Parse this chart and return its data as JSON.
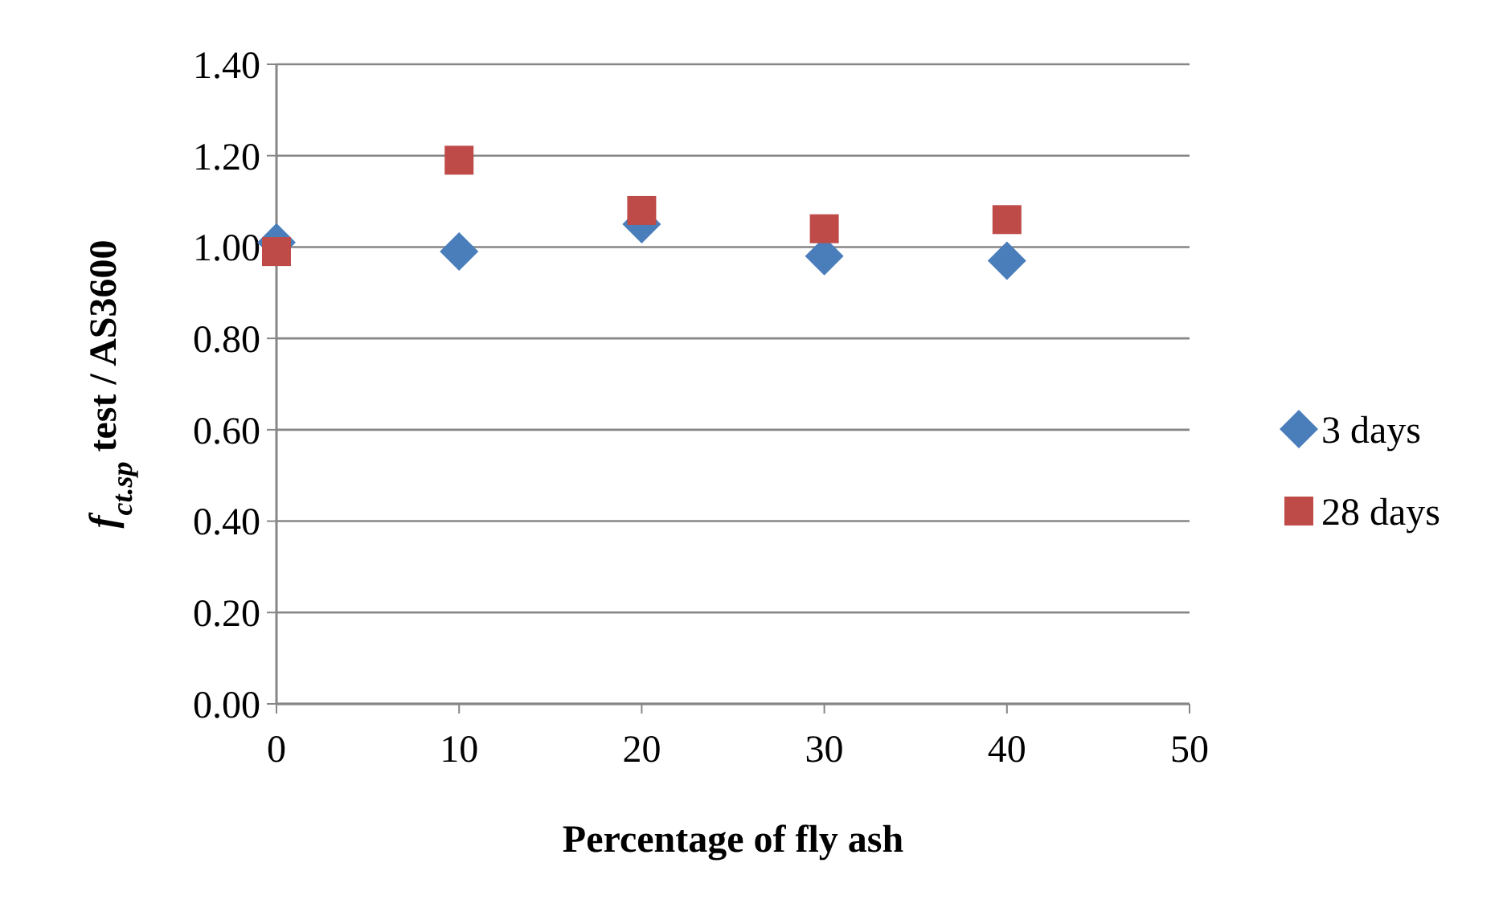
{
  "chart_data": {
    "type": "scatter",
    "xlabel": "Percentage of fly ash",
    "ylabel": "f$_{ct.sp}$ test / AS3600",
    "x": [
      0,
      10,
      20,
      30,
      40
    ],
    "series": [
      {
        "name": "3 days",
        "color": "#4a7ebb",
        "marker": "diamond",
        "values": [
          1.01,
          0.99,
          1.05,
          0.98,
          0.97
        ]
      },
      {
        "name": "28 days",
        "color": "#be4b48",
        "marker": "square",
        "values": [
          0.99,
          1.19,
          1.08,
          1.04,
          1.06
        ]
      }
    ],
    "xlim": [
      0,
      50
    ],
    "xticks": [
      0,
      10,
      20,
      30,
      40,
      50
    ],
    "ylim": [
      0,
      1.4
    ],
    "yticks": [
      {
        "value": 0,
        "label": "0.00"
      },
      {
        "value": 0.2,
        "label": "0.20"
      },
      {
        "value": 0.4,
        "label": "0.40"
      },
      {
        "value": 0.6,
        "label": "0.60"
      },
      {
        "value": 0.8,
        "label": "0.80"
      },
      {
        "value": 1,
        "label": "1.00"
      },
      {
        "value": 1.2,
        "label": "1.20"
      },
      {
        "value": 1.4,
        "label": "1.40"
      }
    ],
    "grid": "y",
    "legend": "right"
  }
}
